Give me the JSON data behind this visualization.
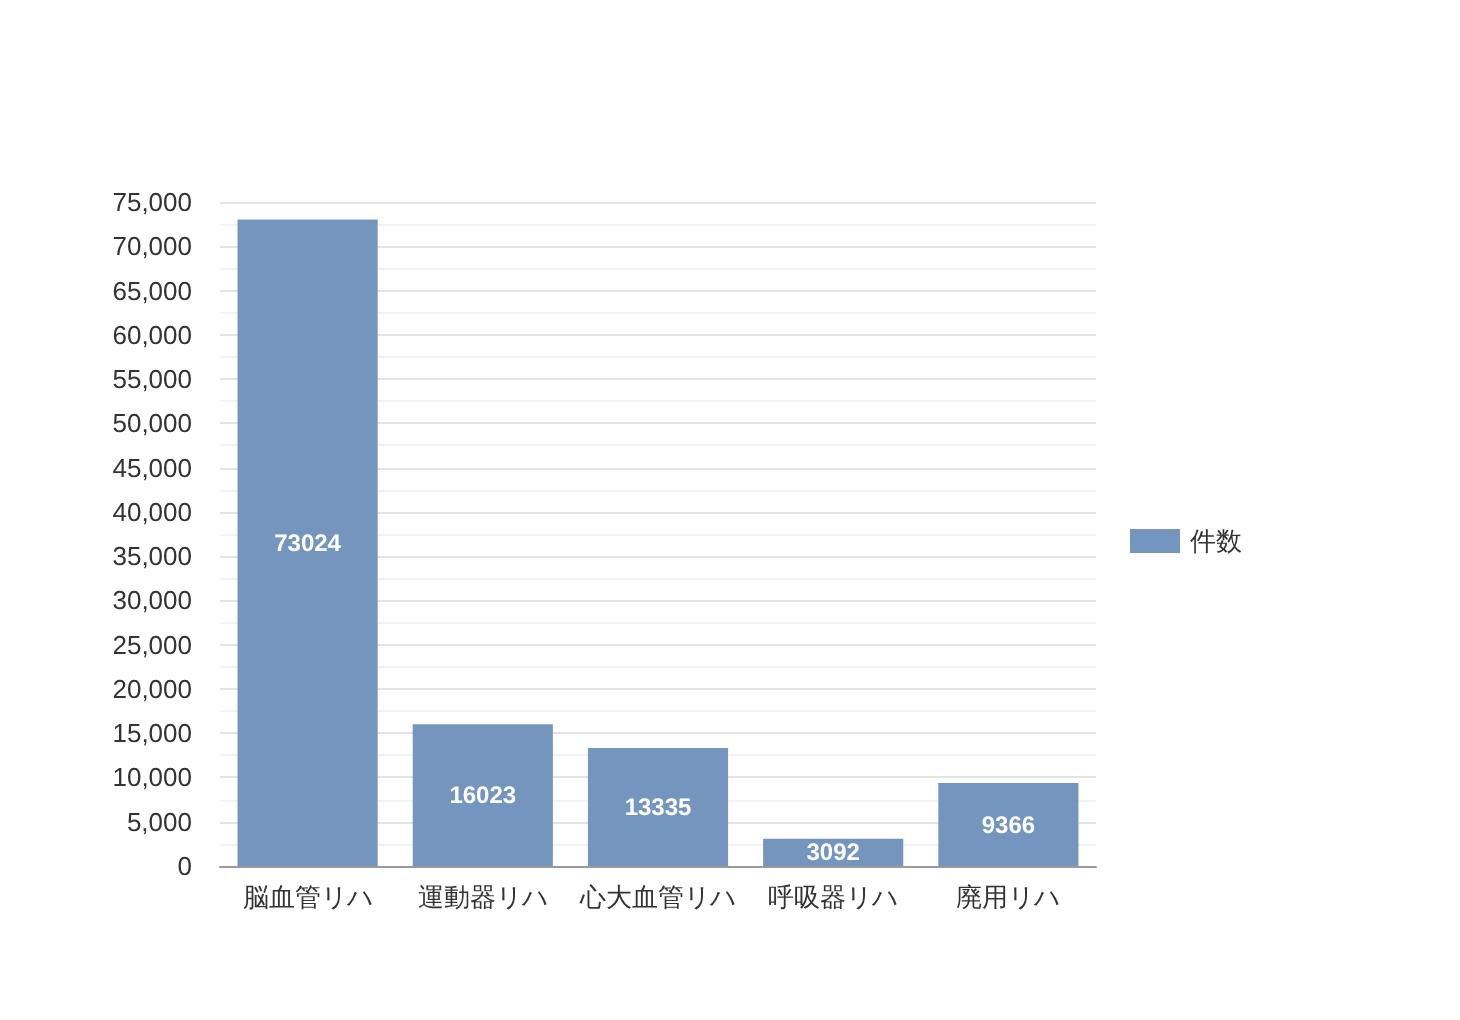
{
  "chart_data": {
    "type": "bar",
    "categories": [
      "脳血管リハ",
      "運動器リハ",
      "心大血管リハ",
      "呼吸器リハ",
      "廃用リハ"
    ],
    "series": [
      {
        "name": "件数",
        "color": "#7496be",
        "values": [
          73024,
          16023,
          13335,
          3092,
          9366
        ]
      }
    ],
    "ylim": [
      0,
      75000
    ],
    "yticks": [
      {
        "value": 0,
        "label": "0"
      },
      {
        "value": 2500,
        "label": null
      },
      {
        "value": 5000,
        "label": "5,000"
      },
      {
        "value": 7500,
        "label": null
      },
      {
        "value": 10000,
        "label": "10,000"
      },
      {
        "value": 12500,
        "label": null
      },
      {
        "value": 15000,
        "label": "15,000"
      },
      {
        "value": 17500,
        "label": null
      },
      {
        "value": 20000,
        "label": "20,000"
      },
      {
        "value": 22500,
        "label": null
      },
      {
        "value": 25000,
        "label": "25,000"
      },
      {
        "value": 27500,
        "label": null
      },
      {
        "value": 30000,
        "label": "30,000"
      },
      {
        "value": 32500,
        "label": null
      },
      {
        "value": 35000,
        "label": "35,000"
      },
      {
        "value": 37500,
        "label": null
      },
      {
        "value": 40000,
        "label": "40,000"
      },
      {
        "value": 42500,
        "label": null
      },
      {
        "value": 45000,
        "label": "45,000"
      },
      {
        "value": 47500,
        "label": null
      },
      {
        "value": 50000,
        "label": "50,000"
      },
      {
        "value": 52500,
        "label": null
      },
      {
        "value": 55000,
        "label": "55,000"
      },
      {
        "value": 57500,
        "label": null
      },
      {
        "value": 60000,
        "label": "60,000"
      },
      {
        "value": 62500,
        "label": null
      },
      {
        "value": 65000,
        "label": "65,000"
      },
      {
        "value": 67500,
        "label": null
      },
      {
        "value": 70000,
        "label": "70,000"
      },
      {
        "value": 72500,
        "label": null
      },
      {
        "value": 75000,
        "label": "75,000"
      }
    ],
    "grid": "y",
    "legend": "right",
    "data_labels": true
  }
}
